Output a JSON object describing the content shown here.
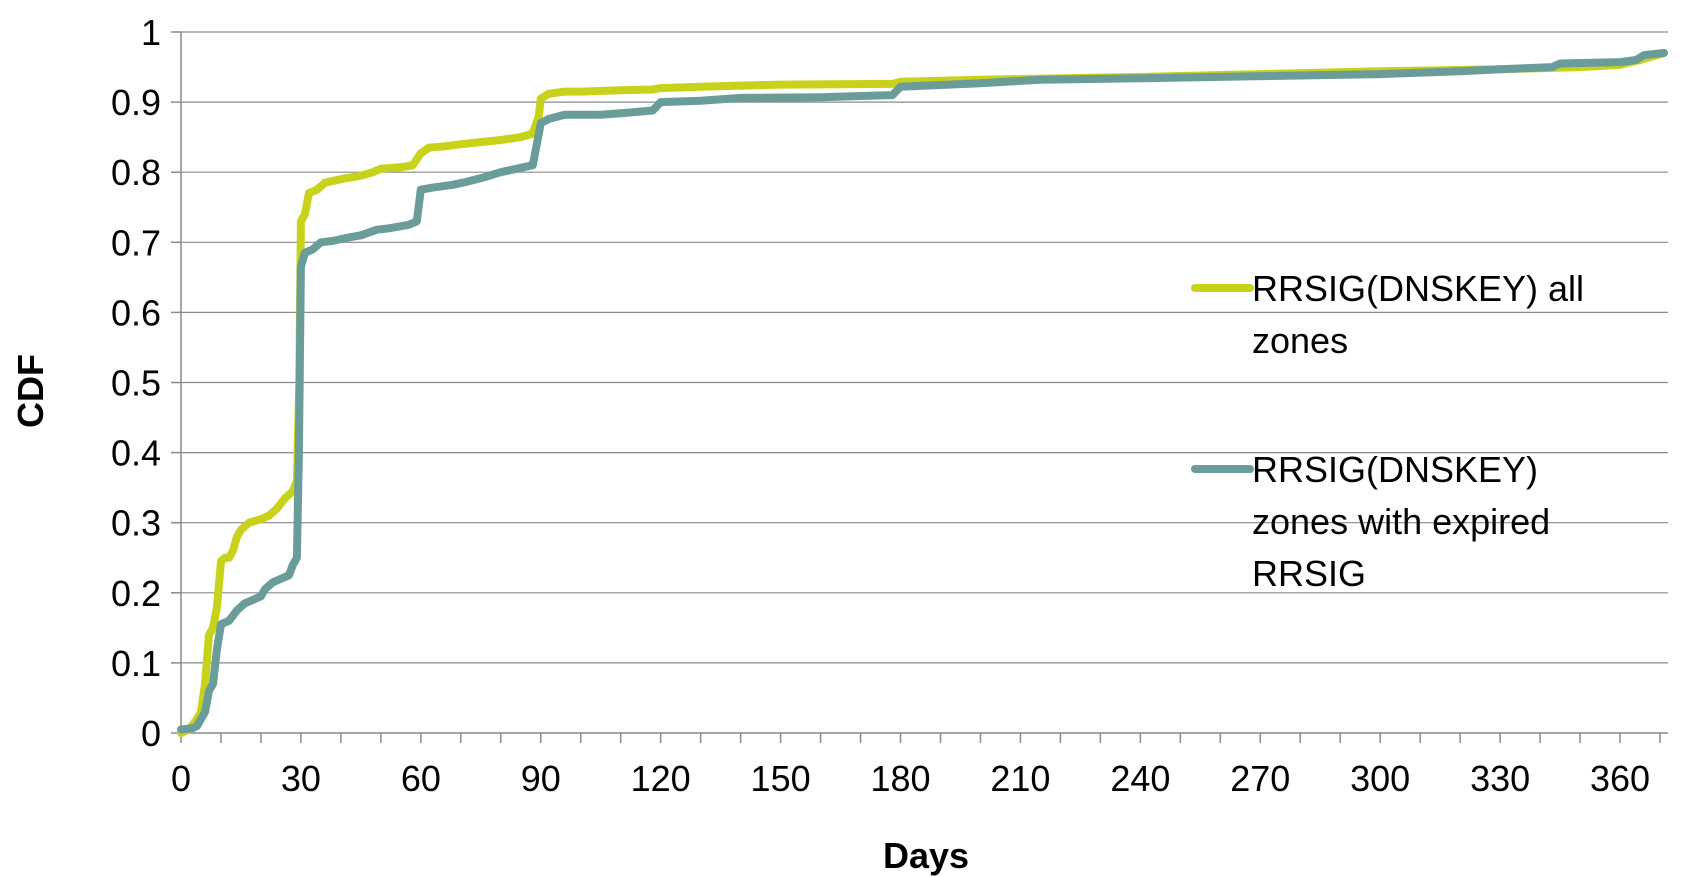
{
  "chart_data": {
    "type": "line",
    "title": "",
    "xlabel": "Days",
    "ylabel": "CDF",
    "xlim": [
      0,
      372
    ],
    "ylim": [
      0,
      1
    ],
    "x_ticks": [
      0,
      30,
      60,
      90,
      120,
      150,
      180,
      210,
      240,
      270,
      300,
      330,
      360
    ],
    "y_ticks": [
      0,
      0.1,
      0.2,
      0.3,
      0.4,
      0.5,
      0.6,
      0.7,
      0.8,
      0.9,
      1
    ],
    "y_tick_labels": [
      "0",
      "0.1",
      "0.2",
      "0.3",
      "0.4",
      "0.5",
      "0.6",
      "0.7",
      "0.8",
      "0.9",
      "1"
    ],
    "grid": true,
    "legend_position": "right",
    "series": [
      {
        "name": "RRSIG(DNSKEY) all zones",
        "legend_lines": [
          "RRSIG(DNSKEY) all",
          "zones"
        ],
        "color": "#c9d21a",
        "points": [
          [
            0,
            0
          ],
          [
            2,
            0.005
          ],
          [
            4,
            0.02
          ],
          [
            5,
            0.03
          ],
          [
            6,
            0.07
          ],
          [
            7,
            0.14
          ],
          [
            8,
            0.15
          ],
          [
            9,
            0.18
          ],
          [
            10,
            0.245
          ],
          [
            11,
            0.25
          ],
          [
            12,
            0.25
          ],
          [
            13,
            0.26
          ],
          [
            14,
            0.28
          ],
          [
            15,
            0.29
          ],
          [
            17,
            0.3
          ],
          [
            20,
            0.305
          ],
          [
            22,
            0.31
          ],
          [
            24,
            0.32
          ],
          [
            26,
            0.335
          ],
          [
            28,
            0.345
          ],
          [
            29,
            0.36
          ],
          [
            29.6,
            0.5
          ],
          [
            30,
            0.73
          ],
          [
            31,
            0.74
          ],
          [
            32,
            0.77
          ],
          [
            34,
            0.775
          ],
          [
            36,
            0.785
          ],
          [
            40,
            0.79
          ],
          [
            45,
            0.795
          ],
          [
            48,
            0.8
          ],
          [
            50,
            0.805
          ],
          [
            55,
            0.807
          ],
          [
            58,
            0.81
          ],
          [
            60,
            0.827
          ],
          [
            62,
            0.835
          ],
          [
            66,
            0.837
          ],
          [
            70,
            0.84
          ],
          [
            75,
            0.843
          ],
          [
            80,
            0.846
          ],
          [
            85,
            0.85
          ],
          [
            88,
            0.855
          ],
          [
            89.5,
            0.88
          ],
          [
            90,
            0.905
          ],
          [
            92,
            0.912
          ],
          [
            96,
            0.915
          ],
          [
            100,
            0.915
          ],
          [
            110,
            0.917
          ],
          [
            118,
            0.918
          ],
          [
            120,
            0.92
          ],
          [
            130,
            0.922
          ],
          [
            150,
            0.925
          ],
          [
            178,
            0.926
          ],
          [
            180,
            0.929
          ],
          [
            200,
            0.932
          ],
          [
            240,
            0.936
          ],
          [
            270,
            0.94
          ],
          [
            300,
            0.944
          ],
          [
            330,
            0.947
          ],
          [
            350,
            0.95
          ],
          [
            360,
            0.953
          ],
          [
            365,
            0.96
          ],
          [
            371,
            0.97
          ]
        ]
      },
      {
        "name": "RRSIG(DNSKEY) zones with expired RRSIG",
        "legend_lines": [
          "RRSIG(DNSKEY)",
          "zones with expired",
          "RRSIG"
        ],
        "color": "#6a9c9a",
        "points": [
          [
            0,
            0.005
          ],
          [
            3,
            0.007
          ],
          [
            4,
            0.01
          ],
          [
            5,
            0.02
          ],
          [
            6,
            0.03
          ],
          [
            7,
            0.06
          ],
          [
            8,
            0.07
          ],
          [
            9,
            0.12
          ],
          [
            10,
            0.155
          ],
          [
            12,
            0.16
          ],
          [
            14,
            0.175
          ],
          [
            16,
            0.185
          ],
          [
            18,
            0.19
          ],
          [
            20,
            0.195
          ],
          [
            21,
            0.205
          ],
          [
            23,
            0.215
          ],
          [
            25,
            0.22
          ],
          [
            27,
            0.225
          ],
          [
            28,
            0.24
          ],
          [
            29,
            0.25
          ],
          [
            29.5,
            0.4
          ],
          [
            30,
            0.665
          ],
          [
            31,
            0.685
          ],
          [
            33,
            0.69
          ],
          [
            35,
            0.7
          ],
          [
            38,
            0.702
          ],
          [
            42,
            0.707
          ],
          [
            45,
            0.71
          ],
          [
            49,
            0.718
          ],
          [
            52,
            0.72
          ],
          [
            57,
            0.725
          ],
          [
            59,
            0.73
          ],
          [
            60,
            0.775
          ],
          [
            63,
            0.778
          ],
          [
            68,
            0.782
          ],
          [
            72,
            0.787
          ],
          [
            76,
            0.793
          ],
          [
            80,
            0.8
          ],
          [
            84,
            0.805
          ],
          [
            88,
            0.81
          ],
          [
            89,
            0.84
          ],
          [
            90,
            0.87
          ],
          [
            92,
            0.876
          ],
          [
            96,
            0.882
          ],
          [
            105,
            0.882
          ],
          [
            112,
            0.885
          ],
          [
            118,
            0.888
          ],
          [
            120,
            0.9
          ],
          [
            130,
            0.902
          ],
          [
            140,
            0.906
          ],
          [
            160,
            0.907
          ],
          [
            178,
            0.91
          ],
          [
            180,
            0.922
          ],
          [
            200,
            0.927
          ],
          [
            215,
            0.932
          ],
          [
            240,
            0.934
          ],
          [
            260,
            0.936
          ],
          [
            280,
            0.938
          ],
          [
            300,
            0.94
          ],
          [
            320,
            0.944
          ],
          [
            330,
            0.947
          ],
          [
            343,
            0.95
          ],
          [
            345,
            0.955
          ],
          [
            360,
            0.957
          ],
          [
            364,
            0.96
          ],
          [
            366,
            0.967
          ],
          [
            371,
            0.97
          ]
        ]
      }
    ]
  }
}
